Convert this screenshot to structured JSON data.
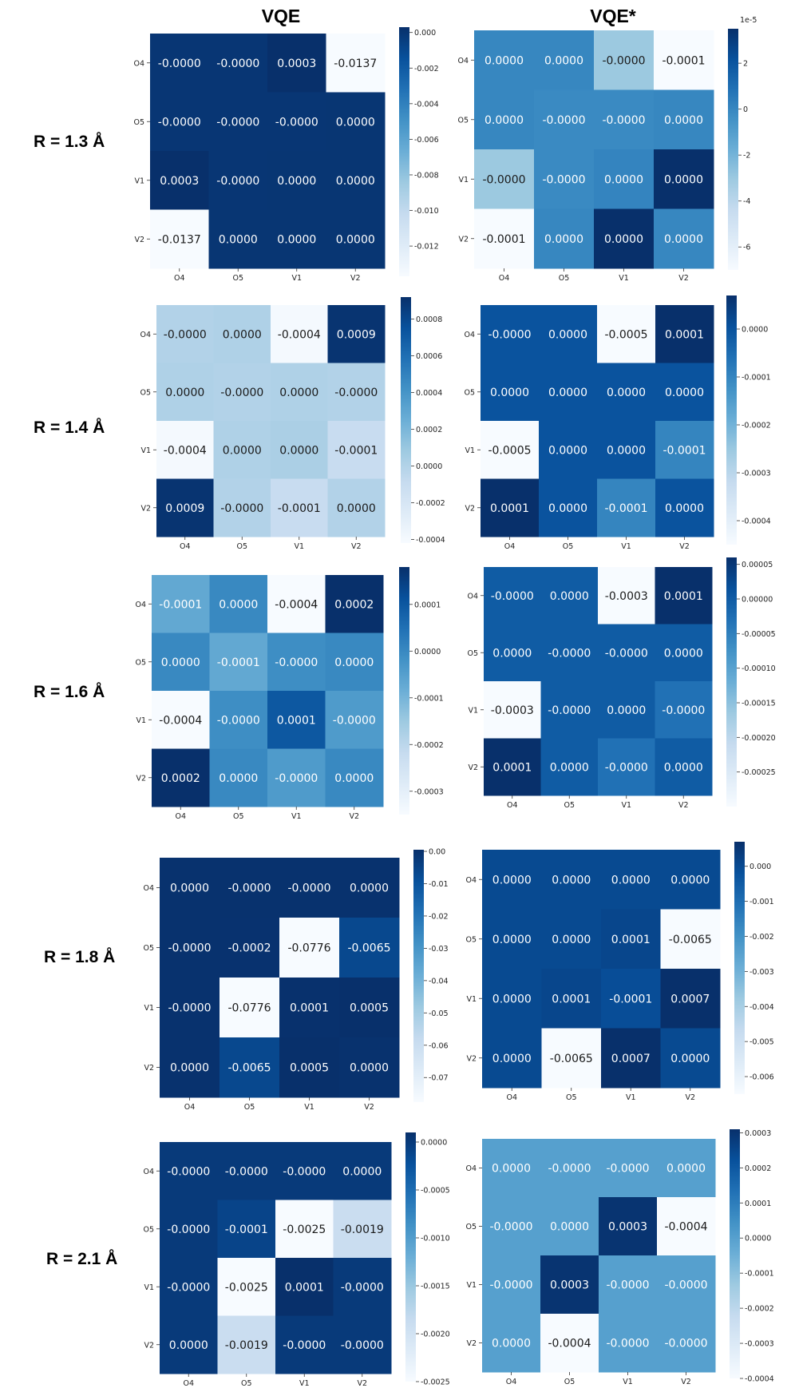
{
  "column_titles": [
    "VQE",
    "VQE*"
  ],
  "row_labels": [
    "R = 1.3 Å",
    "R = 1.4 Å",
    "R = 1.6 Å",
    "R = 1.8 Å",
    "R = 2.1 Å"
  ],
  "colormap": [
    "#f7fbff",
    "#deebf7",
    "#c6dbef",
    "#9ecae1",
    "#6baed6",
    "#4292c6",
    "#2171b5",
    "#08519c",
    "#08306b"
  ],
  "chart_data": [
    {
      "type": "heatmap",
      "method": "VQE",
      "row_label": "R = 1.3 Å",
      "x_categories": [
        "O4",
        "O5",
        "V1",
        "V2"
      ],
      "y_categories": [
        "O4",
        "O5",
        "V1",
        "V2"
      ],
      "values": [
        [
          -1e-05,
          -1e-05,
          0.0003,
          -0.0137
        ],
        [
          -1e-05,
          -1e-05,
          -1e-05,
          0.0
        ],
        [
          0.0003,
          -1e-05,
          0.0,
          0.0
        ],
        [
          -0.0137,
          0.0,
          0.0,
          0.0
        ]
      ],
      "labels": [
        [
          "-0.0000",
          "-0.0000",
          "0.0003",
          "-0.0137"
        ],
        [
          "-0.0000",
          "-0.0000",
          "-0.0000",
          "0.0000"
        ],
        [
          "0.0003",
          "-0.0000",
          "0.0000",
          "0.0000"
        ],
        [
          "-0.0137",
          "0.0000",
          "0.0000",
          "0.0000"
        ]
      ],
      "vmin": -0.0137,
      "vmax": 0.0003,
      "colorbar_ticks": [
        0.0,
        -0.002,
        -0.004,
        -0.006,
        -0.008,
        -0.01,
        -0.012
      ],
      "colorbar_labels": [
        "0.000",
        "-0.002",
        "-0.004",
        "-0.006",
        "-0.008",
        "-0.010",
        "-0.012"
      ],
      "colorbar_offset": ""
    },
    {
      "type": "heatmap",
      "method": "VQE*",
      "row_label": "R = 1.3 Å",
      "x_categories": [
        "O4",
        "O5",
        "V1",
        "V2"
      ],
      "y_categories": [
        "O4",
        "O5",
        "V1",
        "V2"
      ],
      "values": [
        [
          0.0,
          0.0,
          -3e-05,
          -7e-05
        ],
        [
          0.0,
          -1e-06,
          -1e-06,
          0.0
        ],
        [
          -3e-05,
          -1e-06,
          1e-06,
          3.5e-05
        ],
        [
          -7e-05,
          0.0,
          3.5e-05,
          0.0
        ]
      ],
      "labels": [
        [
          "0.0000",
          "0.0000",
          "-0.0000",
          "-0.0001"
        ],
        [
          "0.0000",
          "-0.0000",
          "-0.0000",
          "0.0000"
        ],
        [
          "-0.0000",
          "-0.0000",
          "0.0000",
          "0.0000"
        ],
        [
          "-0.0001",
          "0.0000",
          "0.0000",
          "0.0000"
        ]
      ],
      "vmin": -7e-05,
      "vmax": 3.5e-05,
      "colorbar_ticks": [
        2e-05,
        0.0,
        -2e-05,
        -4e-05,
        -6e-05
      ],
      "colorbar_labels": [
        "2",
        "0",
        "-2",
        "-4",
        "-6"
      ],
      "colorbar_offset": "1e-5"
    },
    {
      "type": "heatmap",
      "method": "VQE",
      "row_label": "R = 1.4 Å",
      "x_categories": [
        "O4",
        "O5",
        "V1",
        "V2"
      ],
      "y_categories": [
        "O4",
        "O5",
        "V1",
        "V2"
      ],
      "values": [
        [
          0.0,
          1e-05,
          -0.0004,
          0.0009
        ],
        [
          1e-05,
          0.0,
          1e-05,
          0.0
        ],
        [
          -0.0004,
          1e-05,
          3e-05,
          -0.0001
        ],
        [
          0.0009,
          0.0,
          -0.0001,
          0.0
        ]
      ],
      "labels": [
        [
          "-0.0000",
          "0.0000",
          "-0.0004",
          "0.0009"
        ],
        [
          "0.0000",
          "-0.0000",
          "0.0000",
          "-0.0000"
        ],
        [
          "-0.0004",
          "0.0000",
          "0.0000",
          "-0.0001"
        ],
        [
          "0.0009",
          "-0.0000",
          "-0.0001",
          "0.0000"
        ]
      ],
      "vmin": -0.00042,
      "vmax": 0.00092,
      "colorbar_ticks": [
        0.0008,
        0.0006,
        0.0004,
        0.0002,
        0.0,
        -0.0002,
        -0.0004
      ],
      "colorbar_labels": [
        "0.0008",
        "0.0006",
        "0.0004",
        "0.0002",
        "0.0000",
        "-0.0002",
        "-0.0004"
      ],
      "colorbar_offset": ""
    },
    {
      "type": "heatmap",
      "method": "VQE*",
      "row_label": "R = 1.4 Å",
      "x_categories": [
        "O4",
        "O5",
        "V1",
        "V2"
      ],
      "y_categories": [
        "O4",
        "O5",
        "V1",
        "V2"
      ],
      "values": [
        [
          0.0,
          0.0,
          -0.0005,
          0.0001
        ],
        [
          0.0,
          0.0,
          0.0,
          0.0
        ],
        [
          -0.0005,
          0.0,
          0.0,
          -0.0001
        ],
        [
          0.0001,
          0.0,
          -0.0001,
          0.0
        ]
      ],
      "labels": [
        [
          "-0.0000",
          "0.0000",
          "-0.0005",
          "0.0001"
        ],
        [
          "0.0000",
          "0.0000",
          "0.0000",
          "0.0000"
        ],
        [
          "-0.0005",
          "0.0000",
          "0.0000",
          "-0.0001"
        ],
        [
          "0.0001",
          "0.0000",
          "-0.0001",
          "0.0000"
        ]
      ],
      "vmin": -0.00045,
      "vmax": 7e-05,
      "colorbar_ticks": [
        0.0,
        -0.0001,
        -0.0002,
        -0.0003,
        -0.0004
      ],
      "colorbar_labels": [
        "0.0000",
        "-0.0001",
        "-0.0002",
        "-0.0003",
        "-0.0004"
      ],
      "colorbar_offset": ""
    },
    {
      "type": "heatmap",
      "method": "VQE",
      "row_label": "R = 1.6 Å",
      "x_categories": [
        "O4",
        "O5",
        "V1",
        "V2"
      ],
      "y_categories": [
        "O4",
        "O5",
        "V1",
        "V2"
      ],
      "values": [
        [
          -7e-05,
          0.0,
          -0.0004,
          0.0002
        ],
        [
          0.0,
          -7e-05,
          -1e-05,
          0.0
        ],
        [
          -0.0004,
          -1e-05,
          0.0001,
          -4e-05
        ],
        [
          0.0002,
          0.0,
          -4e-05,
          0.0
        ]
      ],
      "labels": [
        [
          "-0.0001",
          "0.0000",
          "-0.0004",
          "0.0002"
        ],
        [
          "0.0000",
          "-0.0001",
          "-0.0000",
          "0.0000"
        ],
        [
          "-0.0004",
          "-0.0000",
          "0.0001",
          "-0.0000"
        ],
        [
          "0.0002",
          "0.0000",
          "-0.0000",
          "0.0000"
        ]
      ],
      "vmin": -0.00035,
      "vmax": 0.00018,
      "colorbar_ticks": [
        0.0001,
        0.0,
        -0.0001,
        -0.0002,
        -0.0003
      ],
      "colorbar_labels": [
        "0.0001",
        "0.0000",
        "-0.0001",
        "-0.0002",
        "-0.0003"
      ],
      "colorbar_offset": ""
    },
    {
      "type": "heatmap",
      "method": "VQE*",
      "row_label": "R = 1.6 Å",
      "x_categories": [
        "O4",
        "O5",
        "V1",
        "V2"
      ],
      "y_categories": [
        "O4",
        "O5",
        "V1",
        "V2"
      ],
      "values": [
        [
          0.0,
          0.0,
          -0.0003,
          7e-05
        ],
        [
          0.0,
          0.0,
          0.0,
          0.0
        ],
        [
          -0.0003,
          0.0,
          0.0,
          -3e-05
        ],
        [
          7e-05,
          0.0,
          -3e-05,
          0.0
        ]
      ],
      "labels": [
        [
          "-0.0000",
          "0.0000",
          "-0.0003",
          "0.0001"
        ],
        [
          "0.0000",
          "-0.0000",
          "-0.0000",
          "0.0000"
        ],
        [
          "-0.0003",
          "-0.0000",
          "0.0000",
          "-0.0000"
        ],
        [
          "0.0001",
          "0.0000",
          "-0.0000",
          "0.0000"
        ]
      ],
      "vmin": -0.0003,
      "vmax": 6e-05,
      "colorbar_ticks": [
        5e-05,
        0.0,
        -5e-05,
        -0.0001,
        -0.00015,
        -0.0002,
        -0.00025
      ],
      "colorbar_labels": [
        "0.00005",
        "0.00000",
        "-0.00005",
        "-0.00010",
        "-0.00015",
        "-0.00020",
        "-0.00025"
      ],
      "colorbar_offset": ""
    },
    {
      "type": "heatmap",
      "method": "VQE",
      "row_label": "R = 1.8 Å",
      "x_categories": [
        "O4",
        "O5",
        "V1",
        "V2"
      ],
      "y_categories": [
        "O4",
        "O5",
        "V1",
        "V2"
      ],
      "values": [
        [
          0.0,
          0.0,
          0.0,
          0.0
        ],
        [
          0.0,
          -0.0002,
          -0.0776,
          -0.0065
        ],
        [
          0.0,
          -0.0776,
          0.0001,
          0.0005
        ],
        [
          0.0,
          -0.0065,
          0.0005,
          0.0
        ]
      ],
      "labels": [
        [
          "0.0000",
          "-0.0000",
          "-0.0000",
          "0.0000"
        ],
        [
          "-0.0000",
          "-0.0002",
          "-0.0776",
          "-0.0065"
        ],
        [
          "-0.0000",
          "-0.0776",
          "0.0001",
          "0.0005"
        ],
        [
          "0.0000",
          "-0.0065",
          "0.0005",
          "0.0000"
        ]
      ],
      "vmin": -0.0776,
      "vmax": 0.0005,
      "colorbar_ticks": [
        0.0,
        -0.01,
        -0.02,
        -0.03,
        -0.04,
        -0.05,
        -0.06,
        -0.07
      ],
      "colorbar_labels": [
        "0.00",
        "-0.01",
        "-0.02",
        "-0.03",
        "-0.04",
        "-0.05",
        "-0.06",
        "-0.07"
      ],
      "colorbar_offset": ""
    },
    {
      "type": "heatmap",
      "method": "VQE*",
      "row_label": "R = 1.8 Å",
      "x_categories": [
        "O4",
        "O5",
        "V1",
        "V2"
      ],
      "y_categories": [
        "O4",
        "O5",
        "V1",
        "V2"
      ],
      "values": [
        [
          0.0,
          0.0,
          0.0,
          0.0
        ],
        [
          0.0,
          0.0,
          0.0001,
          -0.0065
        ],
        [
          0.0,
          0.0001,
          -0.0001,
          0.0007
        ],
        [
          0.0,
          -0.0065,
          0.0007,
          0.0
        ]
      ],
      "labels": [
        [
          "0.0000",
          "0.0000",
          "0.0000",
          "0.0000"
        ],
        [
          "0.0000",
          "0.0000",
          "0.0001",
          "-0.0065"
        ],
        [
          "0.0000",
          "0.0001",
          "-0.0001",
          "0.0007"
        ],
        [
          "0.0000",
          "-0.0065",
          "0.0007",
          "0.0000"
        ]
      ],
      "vmin": -0.0065,
      "vmax": 0.0007,
      "colorbar_ticks": [
        0.0,
        -0.001,
        -0.002,
        -0.003,
        -0.004,
        -0.005,
        -0.006
      ],
      "colorbar_labels": [
        "0.000",
        "-0.001",
        "-0.002",
        "-0.003",
        "-0.004",
        "-0.005",
        "-0.006"
      ],
      "colorbar_offset": ""
    },
    {
      "type": "heatmap",
      "method": "VQE",
      "row_label": "R = 2.1 Å",
      "x_categories": [
        "O4",
        "O5",
        "V1",
        "V2"
      ],
      "y_categories": [
        "O4",
        "O5",
        "V1",
        "V2"
      ],
      "values": [
        [
          0.0,
          0.0,
          0.0,
          0.0
        ],
        [
          0.0,
          -0.0001,
          -0.0025,
          -0.0019
        ],
        [
          0.0,
          -0.0025,
          0.0001,
          0.0
        ],
        [
          0.0,
          -0.0019,
          0.0,
          0.0
        ]
      ],
      "labels": [
        [
          "-0.0000",
          "-0.0000",
          "-0.0000",
          "0.0000"
        ],
        [
          "-0.0000",
          "-0.0001",
          "-0.0025",
          "-0.0019"
        ],
        [
          "-0.0000",
          "-0.0025",
          "0.0001",
          "-0.0000"
        ],
        [
          "0.0000",
          "-0.0019",
          "-0.0000",
          "-0.0000"
        ]
      ],
      "vmin": -0.0025,
      "vmax": 0.0001,
      "colorbar_ticks": [
        0.0,
        -0.0005,
        -0.001,
        -0.0015,
        -0.002,
        -0.0025
      ],
      "colorbar_labels": [
        "0.0000",
        "-0.0005",
        "-0.0010",
        "-0.0015",
        "-0.0020",
        "-0.0025"
      ],
      "colorbar_offset": ""
    },
    {
      "type": "heatmap",
      "method": "VQE*",
      "row_label": "R = 2.1 Å",
      "x_categories": [
        "O4",
        "O5",
        "V1",
        "V2"
      ],
      "y_categories": [
        "O4",
        "O5",
        "V1",
        "V2"
      ],
      "values": [
        [
          0.0,
          0.0,
          0.0,
          0.0
        ],
        [
          0.0,
          0.0,
          0.0003,
          -0.0004
        ],
        [
          0.0,
          0.0003,
          0.0,
          0.0
        ],
        [
          0.0,
          -0.0004,
          0.0,
          0.0
        ]
      ],
      "labels": [
        [
          "0.0000",
          "-0.0000",
          "-0.0000",
          "0.0000"
        ],
        [
          "-0.0000",
          "0.0000",
          "0.0003",
          "-0.0004"
        ],
        [
          "-0.0000",
          "0.0003",
          "-0.0000",
          "-0.0000"
        ],
        [
          "0.0000",
          "-0.0004",
          "-0.0000",
          "-0.0000"
        ]
      ],
      "vmin": -0.0004,
      "vmax": 0.00031,
      "colorbar_ticks": [
        0.0003,
        0.0002,
        0.0001,
        0.0,
        -0.0001,
        -0.0002,
        -0.0003,
        -0.0004
      ],
      "colorbar_labels": [
        "0.0003",
        "0.0002",
        "0.0001",
        "0.0000",
        "-0.0001",
        "-0.0002",
        "-0.0003",
        "-0.0004"
      ],
      "colorbar_offset": ""
    }
  ]
}
